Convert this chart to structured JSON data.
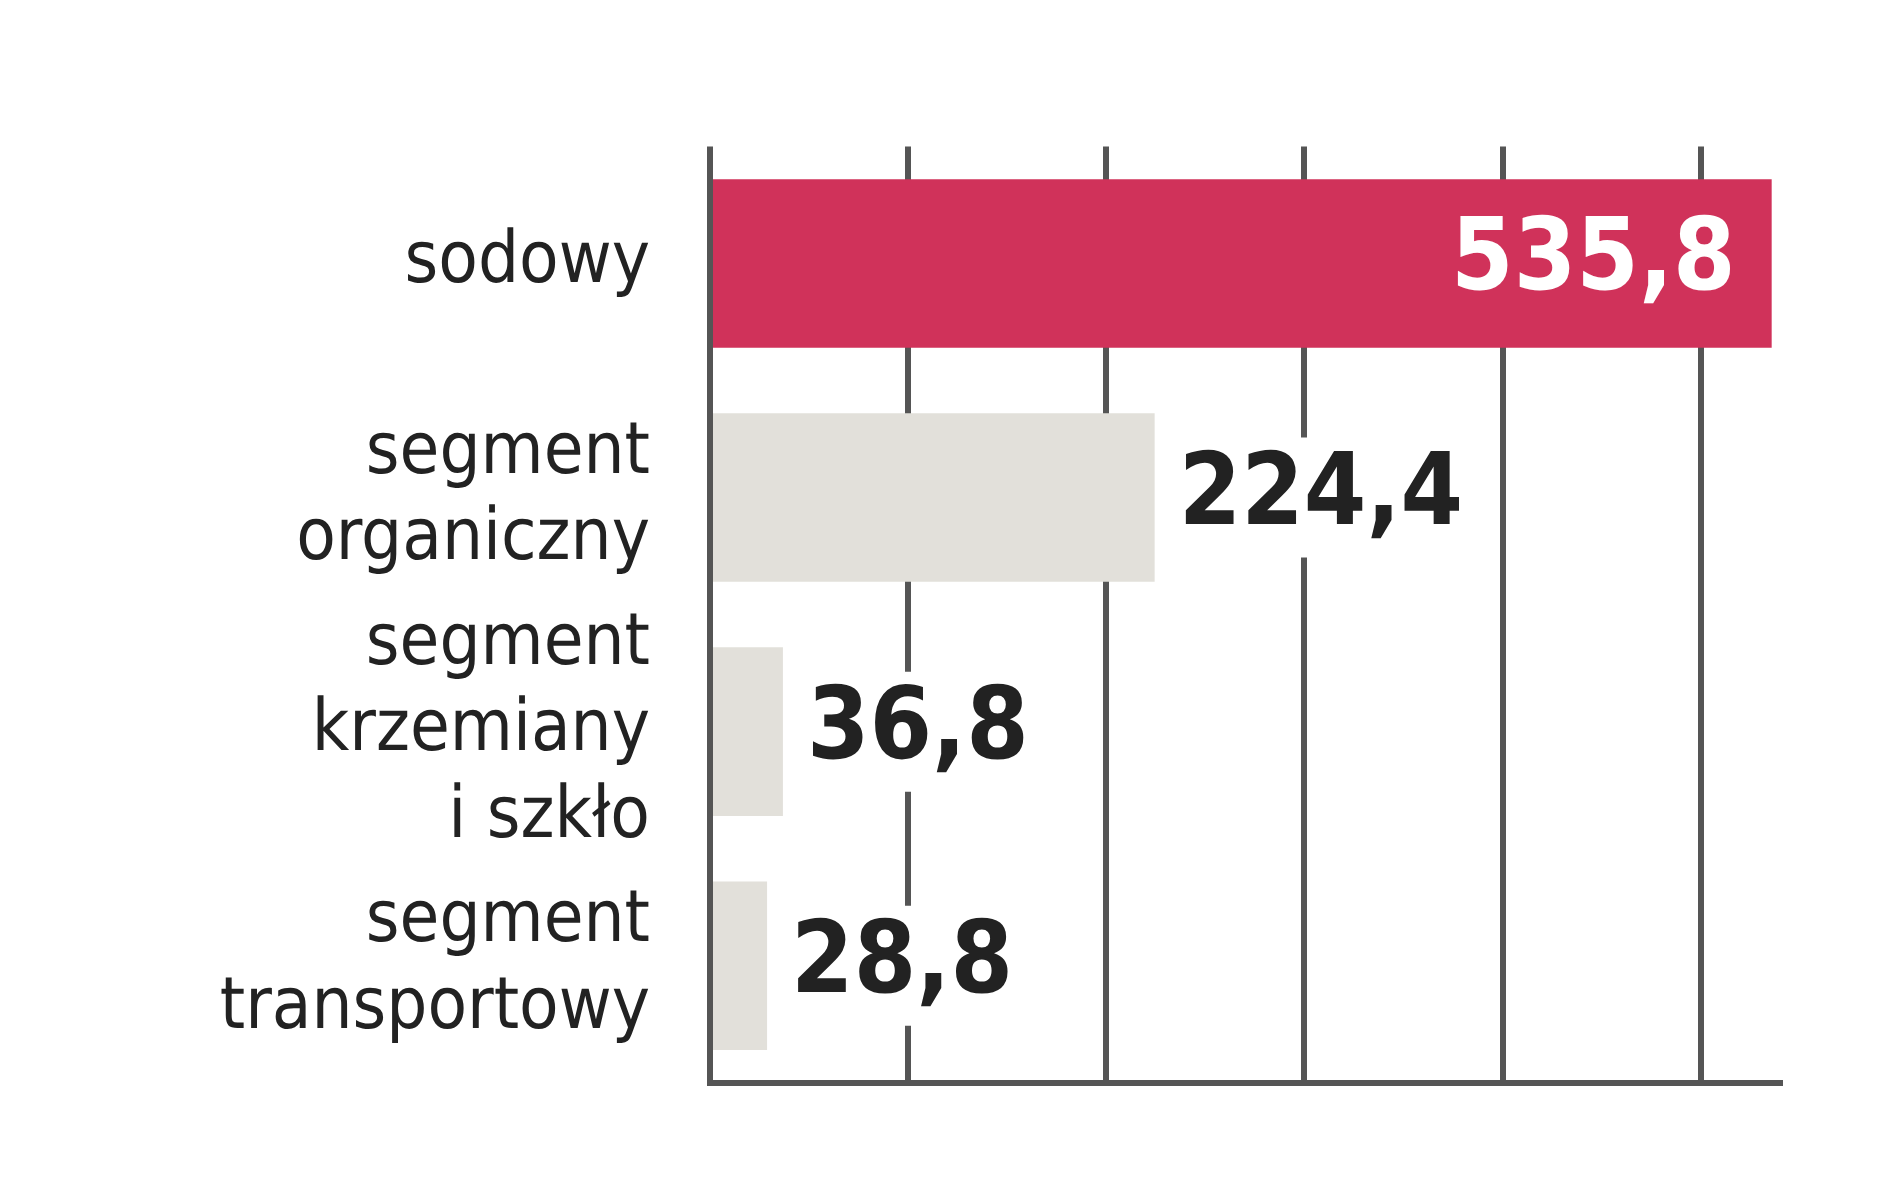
{
  "chart_data": {
    "type": "bar",
    "orientation": "horizontal",
    "categories": [
      "sodowy",
      "segment\norganiczny",
      "segment\nkrzemiany\ni szkło",
      "segment\ntransportowy"
    ],
    "values": [
      535.8,
      224.4,
      36.8,
      28.8
    ],
    "colors": [
      "#d0325a",
      "#e2e0da",
      "#e2e0da",
      "#e2e0da"
    ],
    "value_labels": [
      "535,8",
      "224,4",
      "36,8",
      "28,8"
    ],
    "xlim": [
      0,
      540
    ],
    "xticks": [
      {
        "value": 0,
        "label": null
      },
      {
        "value": 100,
        "label": null
      },
      {
        "value": 200,
        "label": null
      },
      {
        "value": 300,
        "label": null
      },
      {
        "value": 400,
        "label": null
      },
      {
        "value": 500,
        "label": null
      }
    ],
    "grid": "x",
    "tick_labels": "y",
    "legend": false
  }
}
